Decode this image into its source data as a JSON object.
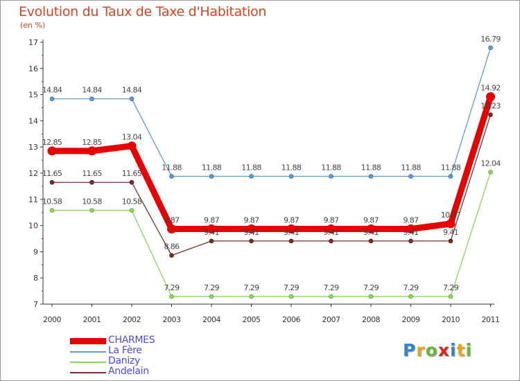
{
  "header": {
    "title": "Evolution du Taux de Taxe d'Habitation",
    "subtitle": "(en %)"
  },
  "brand": {
    "letters": [
      {
        "ch": "P",
        "color": "#2f86c9"
      },
      {
        "ch": "r",
        "color": "#e8a317"
      },
      {
        "ch": "o",
        "color": "#6ab82e"
      },
      {
        "ch": "x",
        "color": "#e2231a"
      },
      {
        "ch": "i",
        "color": "#2f86c9"
      },
      {
        "ch": "t",
        "color": "#e8a317"
      },
      {
        "ch": "i",
        "color": "#6ab82e"
      }
    ]
  },
  "chart_data": {
    "type": "line",
    "title": "Evolution du Taux de Taxe d'Habitation",
    "ylabel": "(en %)",
    "xlabel": "",
    "x": [
      "2000",
      "2001",
      "2002",
      "2003",
      "2004",
      "2005",
      "2006",
      "2007",
      "2008",
      "2009",
      "2010",
      "2011"
    ],
    "yticks": [
      "7",
      "8",
      "9",
      "10",
      "11",
      "12",
      "13",
      "14",
      "15",
      "16",
      "17"
    ],
    "ylim": [
      7,
      17
    ],
    "grid": false,
    "legend_position": "bottom-left",
    "series": [
      {
        "name": "CHARMES",
        "color": "#e60000",
        "emphasis": true,
        "values": [
          12.85,
          12.85,
          13.04,
          9.87,
          9.87,
          9.87,
          9.87,
          9.87,
          9.87,
          9.87,
          10.07,
          14.92
        ],
        "labels": [
          "12.85",
          "12.85",
          "13.04",
          "9.87",
          "9.87",
          "9.87",
          "9.87",
          "9.87",
          "9.87",
          "9.87",
          "10.07",
          "14.92"
        ]
      },
      {
        "name": "La Fère",
        "color": "#5b9bd5",
        "emphasis": false,
        "values": [
          14.84,
          14.84,
          14.84,
          11.88,
          11.88,
          11.88,
          11.88,
          11.88,
          11.88,
          11.88,
          11.88,
          16.79
        ],
        "labels": [
          "14.84",
          "14.84",
          "14.84",
          "11.88",
          "11.88",
          "11.88",
          "11.88",
          "11.88",
          "11.88",
          "11.88",
          "11.88",
          "16.79"
        ]
      },
      {
        "name": "Danizy",
        "color": "#8dd35f",
        "emphasis": false,
        "values": [
          10.58,
          10.58,
          10.58,
          7.29,
          7.29,
          7.29,
          7.29,
          7.29,
          7.29,
          7.29,
          7.29,
          12.04
        ],
        "labels": [
          "10.58",
          "10.58",
          "10.58",
          "7.29",
          "7.29",
          "7.29",
          "7.29",
          "7.29",
          "7.29",
          "7.29",
          "7.29",
          "12.04"
        ]
      },
      {
        "name": "Andelain",
        "color": "#7b2c2c",
        "emphasis": false,
        "values": [
          11.65,
          11.65,
          11.65,
          8.86,
          9.41,
          9.41,
          9.41,
          9.41,
          9.41,
          9.41,
          9.41,
          14.23
        ],
        "labels": [
          "11.65",
          "11.65",
          "11.65",
          "8.86",
          "9.41",
          "9.41",
          "9.41",
          "9.41",
          "9.41",
          "9.41",
          "9.41",
          "14.23"
        ]
      }
    ]
  }
}
